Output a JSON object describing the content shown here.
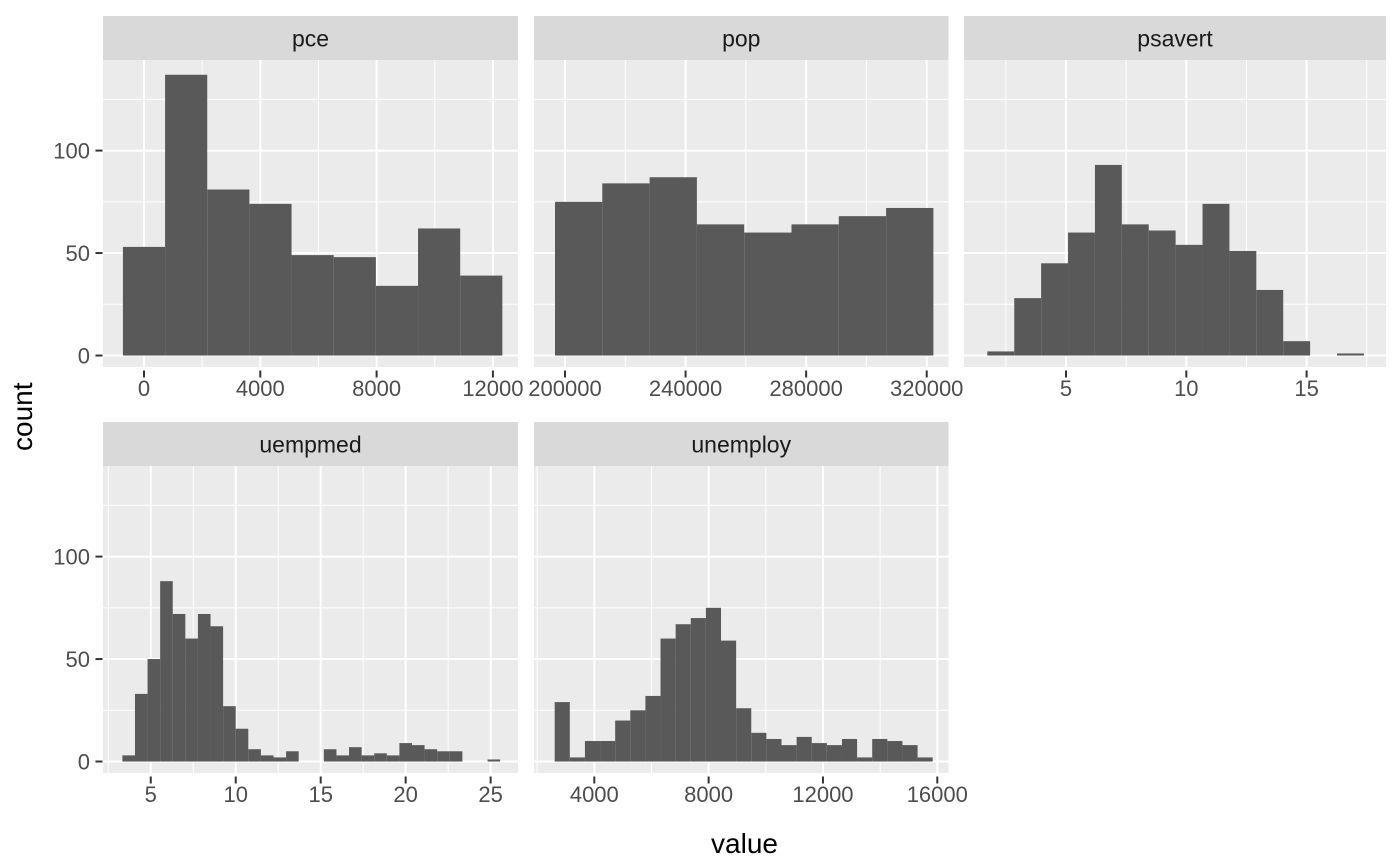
{
  "chart_data": {
    "type": "histogram",
    "layout_hint": "faceted histograms (facet_wrap, free x scales), ggplot2 grey theme, shared y axis",
    "title": "",
    "xlabel": "value",
    "ylabel": "count",
    "y_axis": {
      "lim": [
        -5.6,
        144.2
      ],
      "breaks": [
        {
          "value": 0,
          "label": "0"
        },
        {
          "value": 50,
          "label": "50"
        },
        {
          "value": 100,
          "label": "100"
        }
      ],
      "minor": [
        25,
        75,
        125
      ]
    },
    "facets": [
      {
        "label": "pce",
        "row": 0,
        "col": 0,
        "xlim": [
          -1410,
          12863
        ],
        "x_breaks": [
          {
            "value": 0,
            "label": "0"
          },
          {
            "value": 4000,
            "label": "4000"
          },
          {
            "value": 8000,
            "label": "8000"
          },
          {
            "value": 12000,
            "label": "12000"
          }
        ],
        "x_minor": [
          2000,
          6000,
          10000
        ],
        "bin_start": -725,
        "bin_width": 1450,
        "counts": [
          53,
          137,
          81,
          74,
          49,
          48,
          34,
          62,
          39
        ]
      },
      {
        "label": "pop",
        "row": 0,
        "col": 1,
        "xlim": [
          189714,
          327228
        ],
        "x_breaks": [
          {
            "value": 200000,
            "label": "200000"
          },
          {
            "value": 240000,
            "label": "240000"
          },
          {
            "value": 280000,
            "label": "280000"
          },
          {
            "value": 320000,
            "label": "320000"
          }
        ],
        "x_minor": [
          220000,
          260000,
          300000
        ],
        "bin_start": 196680,
        "bin_width": 15692,
        "counts": [
          75,
          84,
          87,
          64,
          60,
          64,
          68,
          72
        ]
      },
      {
        "label": "psavert",
        "row": 0,
        "col": 2,
        "xlim": [
          0.76,
          18.3
        ],
        "x_breaks": [
          {
            "value": 5,
            "label": "5"
          },
          {
            "value": 10,
            "label": "10"
          },
          {
            "value": 15,
            "label": "15"
          }
        ],
        "x_minor": [
          2.5,
          7.5,
          12.5,
          17.5
        ],
        "bin_start": 1.73,
        "bin_width": 1.118,
        "counts": [
          2,
          28,
          45,
          60,
          93,
          64,
          61,
          54,
          74,
          51,
          32,
          7,
          0,
          1
        ]
      },
      {
        "label": "uempmed",
        "row": 1,
        "col": 0,
        "xlim": [
          2.19,
          26.61
        ],
        "x_breaks": [
          {
            "value": 5,
            "label": "5"
          },
          {
            "value": 10,
            "label": "10"
          },
          {
            "value": 15,
            "label": "15"
          },
          {
            "value": 20,
            "label": "20"
          },
          {
            "value": 25,
            "label": "25"
          }
        ],
        "x_minor": [
          2.5,
          7.5,
          12.5,
          17.5,
          22.5
        ],
        "bin_start": 3.33,
        "bin_width": 0.741,
        "counts": [
          3,
          33,
          50,
          88,
          72,
          60,
          72,
          66,
          27,
          16,
          6,
          3,
          2,
          5,
          0,
          0,
          6,
          3,
          7,
          3,
          4,
          3,
          9,
          8,
          6,
          5,
          5,
          0,
          0,
          1
        ]
      },
      {
        "label": "unemploy",
        "row": 1,
        "col": 1,
        "xlim": [
          1890,
          16392
        ],
        "x_breaks": [
          {
            "value": 4000,
            "label": "4000"
          },
          {
            "value": 8000,
            "label": "8000"
          },
          {
            "value": 12000,
            "label": "12000"
          },
          {
            "value": 16000,
            "label": "16000"
          }
        ],
        "x_minor": [
          2000,
          6000,
          10000,
          14000
        ],
        "bin_start": 2614,
        "bin_width": 529,
        "counts": [
          29,
          2,
          10,
          10,
          20,
          25,
          32,
          60,
          67,
          70,
          75,
          59,
          26,
          14,
          11,
          8,
          12,
          9,
          8,
          11,
          2,
          11,
          10,
          8,
          2
        ]
      }
    ],
    "colors": {
      "bar": "#595959",
      "panel_background": "#EBEBEB",
      "strip_background": "#D9D9D9",
      "strip_text": "#1A1A1A",
      "gridline": "#FFFFFF",
      "tick_mark": "#333333",
      "axis_text": "#4D4D4D",
      "axis_title_text": "#000000",
      "background": "#FFFFFF"
    }
  }
}
